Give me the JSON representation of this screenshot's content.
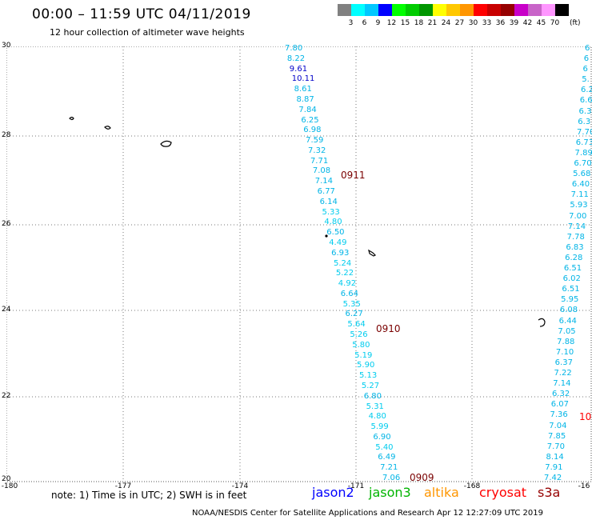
{
  "header": {
    "title": "00:00 – 11:59 UTC 04/11/2019",
    "subtitle": "12 hour collection of altimeter wave heights"
  },
  "legend": {
    "unit": "(ft)",
    "bins": [
      {
        "label": "3",
        "color": "#808080"
      },
      {
        "label": "6",
        "color": "#00ffff"
      },
      {
        "label": "9",
        "color": "#00c8ff"
      },
      {
        "label": "12",
        "color": "#0000ff"
      },
      {
        "label": "15",
        "color": "#00ff00"
      },
      {
        "label": "18",
        "color": "#00cc00"
      },
      {
        "label": "21",
        "color": "#009600"
      },
      {
        "label": "24",
        "color": "#ffff00"
      },
      {
        "label": "27",
        "color": "#ffc800"
      },
      {
        "label": "30",
        "color": "#ff9600"
      },
      {
        "label": "33",
        "color": "#ff0000"
      },
      {
        "label": "36",
        "color": "#c80000"
      },
      {
        "label": "39",
        "color": "#960000"
      },
      {
        "label": "42",
        "color": "#c800c8"
      },
      {
        "label": "45",
        "color": "#c864c8"
      },
      {
        "label": "70",
        "color": "#ff96ff"
      },
      {
        "label": "",
        "color": "#000000"
      }
    ]
  },
  "map": {
    "lat_labels": [
      "30",
      "28",
      "26",
      "24",
      "22",
      "20"
    ],
    "lon_labels": [
      "-180",
      "-177",
      "-174",
      "-171",
      "-168",
      "-16"
    ],
    "track_west": [
      "7.80",
      "8.22",
      "9.61",
      "10.11",
      "8.61",
      "8.87",
      "7.84",
      "6.25",
      "6.98",
      "7.59",
      "7.32",
      "7.71",
      "7.08",
      "7.14",
      "6.77",
      "6.14",
      "5.33",
      "4.80",
      "6.50",
      "4.49",
      "6.93",
      "5.24",
      "5.22",
      "4.92",
      "6.64",
      "5.35",
      "6.27",
      "5.64",
      "5.26",
      "5.80",
      "5.19",
      "5.90",
      "5.13",
      "5.27",
      "6.80",
      "5.31",
      "4.80",
      "5.99",
      "6.90",
      "5.40",
      "6.49",
      "7.21",
      "7.06"
    ],
    "track_west_colors": [
      "#00b4e6",
      "#00b4e6",
      "#0000c8",
      "#0000c8",
      "#00b4e6",
      "#00b4e6",
      "#00b4e6",
      "#00b4e6",
      "#00b4e6",
      "#00b4e6",
      "#00b4e6",
      "#00b4e6",
      "#00b4e6",
      "#00b4e6",
      "#00b4e6",
      "#00b4e6",
      "#00ccee",
      "#00ccee",
      "#00b4e6",
      "#00ccee",
      "#00b4e6",
      "#00ccee",
      "#00ccee",
      "#00ccee",
      "#00b4e6",
      "#00ccee",
      "#00b4e6",
      "#00ccee",
      "#00ccee",
      "#00ccee",
      "#00ccee",
      "#00ccee",
      "#00ccee",
      "#00ccee",
      "#00b4e6",
      "#00ccee",
      "#00ccee",
      "#00ccee",
      "#00b4e6",
      "#00ccee",
      "#00b4e6",
      "#00b4e6",
      "#00b4e6"
    ],
    "track_east": [
      "6",
      "6",
      "6",
      "5.",
      "6.2",
      "6.6",
      "6.3",
      "6.3",
      "7.70",
      "6.73",
      "7.89",
      "6.70",
      "5.68",
      "6.40",
      "7.11",
      "5.93",
      "7.00",
      "7.14",
      "7.78",
      "6.83",
      "6.28",
      "6.51",
      "6.02",
      "6.51",
      "5.95",
      "6.08",
      "6.44",
      "7.05",
      "7.88",
      "7.10",
      "6.37",
      "7.22",
      "7.14",
      "6.32",
      "6.07",
      "7.36",
      "7.04",
      "7.85",
      "7.70",
      "8.14",
      "7.91",
      "7.42"
    ],
    "pass_labels": [
      "0911",
      "0910",
      "0909"
    ],
    "edge_label": "10"
  },
  "footer": {
    "note": "note:  1) Time is in UTC;  2) SWH is in feet",
    "satellites": [
      {
        "name": "jason2",
        "color": "#0000ff"
      },
      {
        "name": "jason3",
        "color": "#00b400"
      },
      {
        "name": "altika",
        "color": "#ff9600"
      },
      {
        "name": "cryosat",
        "color": "#ff0000"
      },
      {
        "name": "s3a",
        "color": "#960000"
      }
    ],
    "credit": "NOAA/NESDIS Center for Satellite Applications and Research     Apr 12 12:27:09 UTC 2019"
  }
}
